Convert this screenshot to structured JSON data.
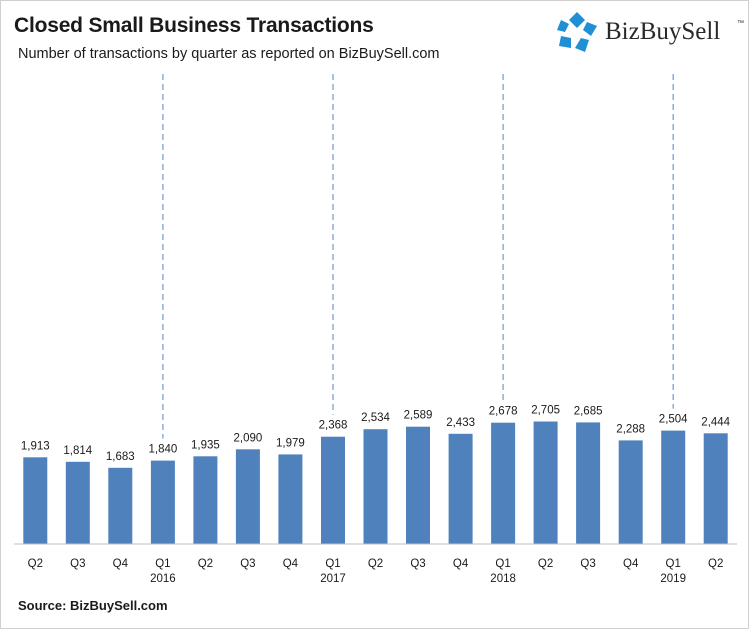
{
  "header": {
    "title": "Closed Small Business Transactions",
    "subtitle": "Number of transactions by quarter as reported  on  BizBuySell.com"
  },
  "logo": {
    "name": "BizBuySell",
    "trademark": "™",
    "icon": "bizbuysell-logo-icon"
  },
  "footer": {
    "source": "Source: BizBuySell.com"
  },
  "colors": {
    "bar": "#4f81bd",
    "divider": "#7aa0cf",
    "axis": "#bfbfbf",
    "logo_blue": "#1f8fd6"
  },
  "chart_data": {
    "type": "bar",
    "categories": [
      "Q2",
      "Q3",
      "Q4",
      "Q1",
      "Q2",
      "Q3",
      "Q4",
      "Q1",
      "Q2",
      "Q3",
      "Q4",
      "Q1",
      "Q2",
      "Q3",
      "Q4",
      "Q1",
      "Q2"
    ],
    "year_labels": [
      "",
      "",
      "",
      "2016",
      "",
      "",
      "",
      "2017",
      "",
      "",
      "",
      "2018",
      "",
      "",
      "",
      "2019",
      ""
    ],
    "values": [
      1913,
      1814,
      1683,
      1840,
      1935,
      2090,
      1979,
      2368,
      2534,
      2589,
      2433,
      2678,
      2705,
      2685,
      2288,
      2504,
      2444
    ],
    "data_labels": [
      "1,913",
      "1,814",
      "1,683",
      "1,840",
      "1,935",
      "2,090",
      "1,979",
      "2,368",
      "2,534",
      "2,589",
      "2,433",
      "2,678",
      "2,705",
      "2,685",
      "2,288",
      "2,504",
      "2,444"
    ],
    "ylim": [
      0,
      2800
    ],
    "year_dividers_before_index": [
      3,
      7,
      11,
      15
    ],
    "grid": false,
    "legend": "none"
  }
}
